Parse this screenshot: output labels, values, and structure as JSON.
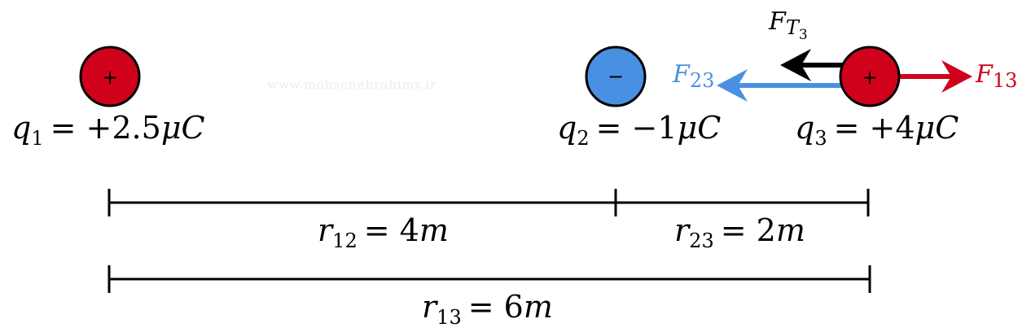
{
  "watermark": "www.mohsenebrahimy.ir",
  "colors": {
    "positive_charge": "#d0021b",
    "negative_charge": "#4a90e2",
    "force_total": "#000000",
    "force_23": "#4a90e2",
    "force_13": "#d0021b"
  },
  "charges": [
    {
      "id": "q1",
      "sign": "+",
      "label_var": "q",
      "label_sub": "1",
      "label_rest": "= +2.5",
      "label_mu": "μ",
      "label_unit": "C"
    },
    {
      "id": "q2",
      "sign": "−",
      "label_var": "q",
      "label_sub": "2",
      "label_rest": "= −1",
      "label_mu": "μ",
      "label_unit": "C"
    },
    {
      "id": "q3",
      "sign": "+",
      "label_var": "q",
      "label_sub": "3",
      "label_rest": "=  +4",
      "label_mu": "μ",
      "label_unit": "C"
    }
  ],
  "forces": {
    "total": {
      "var": "F",
      "sub": "T",
      "subsub": "3"
    },
    "f23": {
      "var": "F",
      "sub": "23"
    },
    "f13": {
      "var": "F",
      "sub": "13"
    }
  },
  "distances": {
    "r12": {
      "var": "r",
      "sub": "12",
      "rest": "= 4",
      "unit": "m"
    },
    "r23": {
      "var": "r",
      "sub": "23",
      "rest": "= 2",
      "unit": "m"
    },
    "r13": {
      "var": "r",
      "sub": "13",
      "rest": "= 6",
      "unit": "m"
    }
  }
}
